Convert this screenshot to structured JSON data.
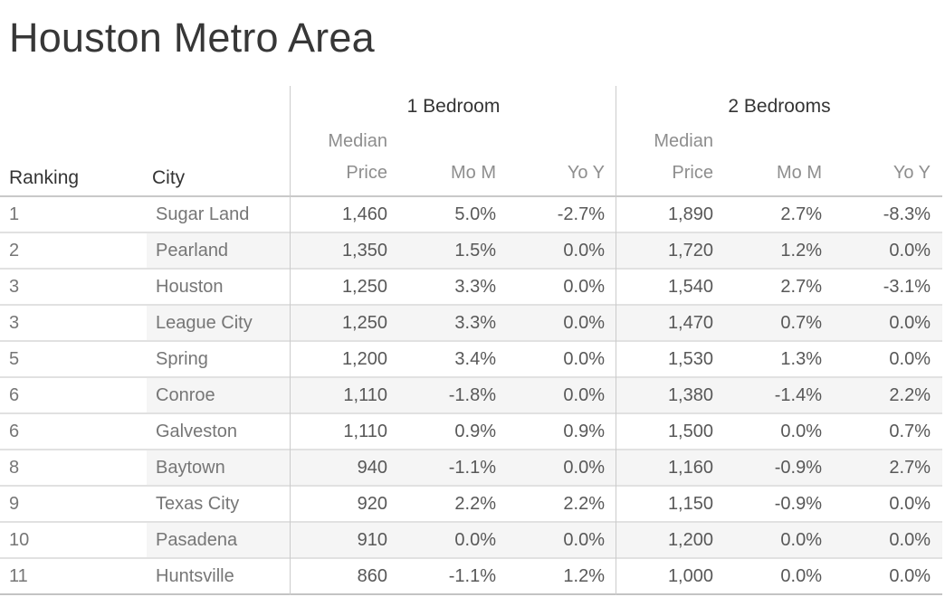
{
  "title": "Houston Metro Area",
  "table": {
    "ranking_header": "Ranking",
    "city_header": "City",
    "groups": [
      {
        "label": "1 Bedroom"
      },
      {
        "label": "2 Bedrooms"
      }
    ],
    "subcols": {
      "median1": "Median",
      "median2": "Price",
      "mom": "Mo M",
      "yoy": "Yo Y"
    },
    "rows": [
      {
        "ranking": "1",
        "city": "Sugar Land",
        "br1_price": "1,460",
        "br1_mom": "5.0%",
        "br1_yoy": "-2.7%",
        "br2_price": "1,890",
        "br2_mom": "2.7%",
        "br2_yoy": "-8.3%"
      },
      {
        "ranking": "2",
        "city": "Pearland",
        "br1_price": "1,350",
        "br1_mom": "1.5%",
        "br1_yoy": "0.0%",
        "br2_price": "1,720",
        "br2_mom": "1.2%",
        "br2_yoy": "0.0%"
      },
      {
        "ranking": "3",
        "city": "Houston",
        "br1_price": "1,250",
        "br1_mom": "3.3%",
        "br1_yoy": "0.0%",
        "br2_price": "1,540",
        "br2_mom": "2.7%",
        "br2_yoy": "-3.1%"
      },
      {
        "ranking": "3",
        "city": "League City",
        "br1_price": "1,250",
        "br1_mom": "3.3%",
        "br1_yoy": "0.0%",
        "br2_price": "1,470",
        "br2_mom": "0.7%",
        "br2_yoy": "0.0%"
      },
      {
        "ranking": "5",
        "city": "Spring",
        "br1_price": "1,200",
        "br1_mom": "3.4%",
        "br1_yoy": "0.0%",
        "br2_price": "1,530",
        "br2_mom": "1.3%",
        "br2_yoy": "0.0%"
      },
      {
        "ranking": "6",
        "city": "Conroe",
        "br1_price": "1,110",
        "br1_mom": "-1.8%",
        "br1_yoy": "0.0%",
        "br2_price": "1,380",
        "br2_mom": "-1.4%",
        "br2_yoy": "2.2%"
      },
      {
        "ranking": "6",
        "city": "Galveston",
        "br1_price": "1,110",
        "br1_mom": "0.9%",
        "br1_yoy": "0.9%",
        "br2_price": "1,500",
        "br2_mom": "0.0%",
        "br2_yoy": "0.7%"
      },
      {
        "ranking": "8",
        "city": "Baytown",
        "br1_price": "940",
        "br1_mom": "-1.1%",
        "br1_yoy": "0.0%",
        "br2_price": "1,160",
        "br2_mom": "-0.9%",
        "br2_yoy": "2.7%"
      },
      {
        "ranking": "9",
        "city": "Texas City",
        "br1_price": "920",
        "br1_mom": "2.2%",
        "br1_yoy": "2.2%",
        "br2_price": "1,150",
        "br2_mom": "-0.9%",
        "br2_yoy": "0.0%"
      },
      {
        "ranking": "10",
        "city": "Pasadena",
        "br1_price": "910",
        "br1_mom": "0.0%",
        "br1_yoy": "0.0%",
        "br2_price": "1,200",
        "br2_mom": "0.0%",
        "br2_yoy": "0.0%"
      },
      {
        "ranking": "11",
        "city": "Huntsville",
        "br1_price": "860",
        "br1_mom": "-1.1%",
        "br1_yoy": "1.2%",
        "br2_price": "1,000",
        "br2_mom": "0.0%",
        "br2_yoy": "0.0%"
      }
    ]
  },
  "chart_data": {
    "type": "table",
    "title": "Houston Metro Area",
    "column_groups": [
      {
        "label": "",
        "columns": [
          "Ranking",
          "City"
        ]
      },
      {
        "label": "1 Bedroom",
        "columns": [
          "Median Price",
          "Mo M",
          "Yo Y"
        ]
      },
      {
        "label": "2 Bedrooms",
        "columns": [
          "Median Price",
          "Mo M",
          "Yo Y"
        ]
      }
    ],
    "columns": [
      "Ranking",
      "City",
      "1BR Median Price",
      "1BR MoM %",
      "1BR YoY %",
      "2BR Median Price",
      "2BR MoM %",
      "2BR YoY %"
    ],
    "rows": [
      [
        1,
        "Sugar Land",
        1460,
        5.0,
        -2.7,
        1890,
        2.7,
        -8.3
      ],
      [
        2,
        "Pearland",
        1350,
        1.5,
        0.0,
        1720,
        1.2,
        0.0
      ],
      [
        3,
        "Houston",
        1250,
        3.3,
        0.0,
        1540,
        2.7,
        -3.1
      ],
      [
        3,
        "League City",
        1250,
        3.3,
        0.0,
        1470,
        0.7,
        0.0
      ],
      [
        5,
        "Spring",
        1200,
        3.4,
        0.0,
        1530,
        1.3,
        0.0
      ],
      [
        6,
        "Conroe",
        1110,
        -1.8,
        0.0,
        1380,
        -1.4,
        2.2
      ],
      [
        6,
        "Galveston",
        1110,
        0.9,
        0.9,
        1500,
        0.0,
        0.7
      ],
      [
        8,
        "Baytown",
        940,
        -1.1,
        0.0,
        1160,
        -0.9,
        2.7
      ],
      [
        9,
        "Texas City",
        920,
        2.2,
        2.2,
        1150,
        -0.9,
        0.0
      ],
      [
        10,
        "Pasadena",
        910,
        0.0,
        0.0,
        1200,
        0.0,
        0.0
      ],
      [
        11,
        "Huntsville",
        860,
        -1.1,
        1.2,
        1000,
        0.0,
        0.0
      ]
    ],
    "layout": {
      "row_banding": true,
      "grid": "horizontal-lines",
      "pane_dividers": true
    }
  },
  "colors": {
    "background": "#ffffff",
    "band": "#f5f5f5",
    "grid_line": "#e1e1e1",
    "header_line": "#c9c9c9",
    "title_text": "#373737",
    "header_text": "#343434",
    "subheader_text": "#8e8e8e",
    "row_label_text": "#767676",
    "value_text": "#585858"
  }
}
